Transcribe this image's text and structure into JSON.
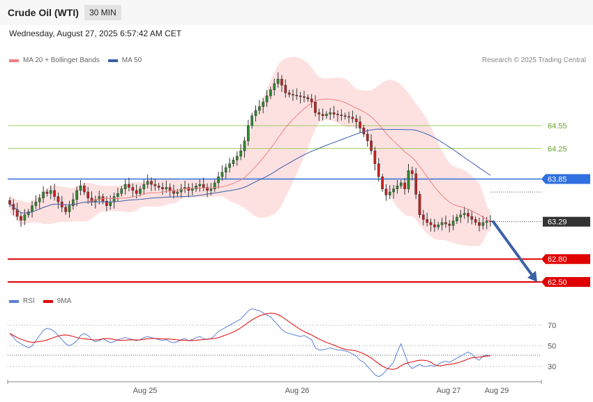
{
  "header": {
    "title": "Crude Oil (WTI)",
    "interval": "30 MIN"
  },
  "datetime": "Wednesday, August 27, 2025 6:57:42 AM CET",
  "legend_main": [
    {
      "label": "MA 20 + Bollinger Bands",
      "color": "#f08080"
    },
    {
      "label": "MA 50",
      "color": "#3a5da8"
    }
  ],
  "credit": "Research © 2025 Trading Central",
  "legend_rsi": [
    {
      "label": "RSI",
      "color": "#5b7fd6"
    },
    {
      "label": "9MA",
      "color": "#e00000"
    }
  ],
  "chart_data": {
    "type": "candlestick",
    "x_labels": [
      "Aug 25",
      "Aug 26",
      "Aug 27",
      "Aug 29"
    ],
    "price_range": [
      62.5,
      64.55
    ],
    "levels": [
      {
        "label": "64.55",
        "value": 64.55,
        "kind": "resistance-minor",
        "color": "#9ccc65"
      },
      {
        "label": "64.25",
        "value": 64.25,
        "kind": "resistance-minor",
        "color": "#9ccc65"
      },
      {
        "label": "63.85",
        "value": 63.85,
        "kind": "pivot",
        "color": "#2f6fdf"
      },
      {
        "label": "63.29",
        "value": 63.29,
        "kind": "last-price",
        "color": "#333333"
      },
      {
        "label": "62.80",
        "value": 62.8,
        "kind": "support",
        "color": "#e00000"
      },
      {
        "label": "62.50",
        "value": 62.5,
        "kind": "support",
        "color": "#e00000"
      }
    ],
    "closes": [
      63.52,
      63.45,
      63.36,
      63.31,
      63.38,
      63.42,
      63.5,
      63.55,
      63.6,
      63.68,
      63.66,
      63.7,
      63.62,
      63.55,
      63.48,
      63.42,
      63.5,
      63.58,
      63.7,
      63.76,
      63.68,
      63.6,
      63.55,
      63.58,
      63.62,
      63.56,
      63.5,
      63.55,
      63.62,
      63.66,
      63.72,
      63.78,
      63.74,
      63.7,
      63.66,
      63.72,
      63.78,
      63.82,
      63.78,
      63.76,
      63.74,
      63.72,
      63.74,
      63.7,
      63.66,
      63.68,
      63.72,
      63.74,
      63.7,
      63.72,
      63.76,
      63.78,
      63.74,
      63.7,
      63.72,
      63.8,
      63.88,
      63.94,
      64.0,
      64.05,
      64.1,
      64.15,
      64.22,
      64.35,
      64.55,
      64.68,
      64.75,
      64.8,
      64.86,
      64.94,
      65.02,
      65.1,
      65.16,
      65.08,
      64.98,
      64.96,
      64.95,
      64.94,
      64.93,
      64.92,
      64.9,
      64.86,
      64.72,
      64.7,
      64.68,
      64.7,
      64.72,
      64.7,
      64.69,
      64.68,
      64.67,
      64.66,
      64.64,
      64.6,
      64.52,
      64.44,
      64.35,
      64.22,
      64.05,
      63.88,
      63.72,
      63.64,
      63.68,
      63.72,
      63.76,
      63.8,
      63.72,
      63.96,
      63.92,
      63.65,
      63.38,
      63.32,
      63.28,
      63.25,
      63.22,
      63.25,
      63.28,
      63.26,
      63.24,
      63.3,
      63.35,
      63.38,
      63.4,
      63.36,
      63.32,
      63.28,
      63.24,
      63.28,
      63.3,
      63.29
    ],
    "rsi_axis": [
      30,
      50,
      70
    ],
    "rsi": [
      62,
      58,
      54,
      52,
      50,
      48,
      50,
      55,
      60,
      65,
      67,
      66,
      64,
      60,
      56,
      52,
      50,
      52,
      55,
      60,
      62,
      60,
      56,
      54,
      55,
      57,
      55,
      53,
      54,
      56,
      57,
      58,
      57,
      56,
      55,
      56,
      58,
      59,
      58,
      57,
      56,
      55,
      56,
      54,
      53,
      54,
      56,
      57,
      55,
      56,
      58,
      59,
      57,
      56,
      57,
      60,
      64,
      66,
      68,
      70,
      72,
      74,
      76,
      80,
      84,
      86,
      85,
      84,
      82,
      80,
      78,
      74,
      70,
      66,
      63,
      62,
      61,
      60,
      59,
      60,
      58,
      56,
      48,
      46,
      46,
      47,
      48,
      47,
      46,
      46,
      45,
      44,
      42,
      40,
      36,
      34,
      30,
      26,
      22,
      20,
      22,
      26,
      30,
      34,
      44,
      52,
      42,
      32,
      28,
      30,
      32,
      30,
      30,
      31,
      30,
      32,
      34,
      35,
      34,
      36,
      38,
      40,
      42,
      44,
      42,
      38,
      36,
      40,
      41,
      40
    ]
  }
}
